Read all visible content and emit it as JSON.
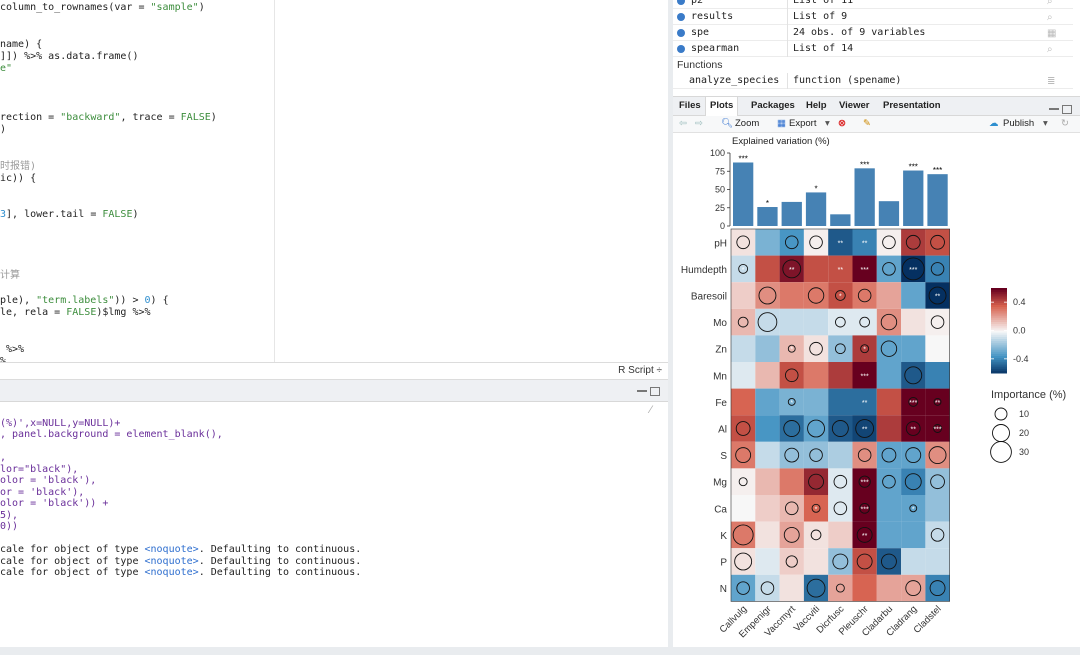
{
  "editor": {
    "lines": [
      [
        {
          "t": "column_to_rownames(var = ",
          "c": "c-fn"
        },
        {
          "t": "\"sample\"",
          "c": "c-str"
        },
        {
          "t": ")",
          "c": "c-fn"
        }
      ],
      [],
      [],
      [
        {
          "t": "name) {",
          "c": "c-fn"
        }
      ],
      [
        {
          "t": "]]) %>% as.data.frame()",
          "c": "c-fn"
        }
      ],
      [
        {
          "t": "e\"",
          "c": "c-str"
        }
      ],
      [],
      [],
      [],
      [
        {
          "t": "rection = ",
          "c": "c-fn"
        },
        {
          "t": "\"backward\"",
          "c": "c-str"
        },
        {
          "t": ", trace = ",
          "c": "c-fn"
        },
        {
          "t": "FALSE",
          "c": "c-str"
        },
        {
          "t": ")",
          "c": "c-fn"
        }
      ],
      [
        {
          "t": ")",
          "c": "c-fn"
        }
      ],
      [],
      [],
      [
        {
          "t": "时报错)",
          "c": "c-cmt"
        }
      ],
      [
        {
          "t": "ic)) {",
          "c": "c-fn"
        }
      ],
      [],
      [],
      [
        {
          "t": "3",
          "c": "c-num"
        },
        {
          "t": "], lower.tail = ",
          "c": "c-fn"
        },
        {
          "t": "FALSE",
          "c": "c-str"
        },
        {
          "t": ")",
          "c": "c-fn"
        }
      ],
      [],
      [],
      [],
      [],
      [
        {
          "t": "计算",
          "c": "c-cmt"
        }
      ],
      [],
      [
        {
          "t": "ple), ",
          "c": "c-fn"
        },
        {
          "t": "\"term.labels\"",
          "c": "c-str"
        },
        {
          "t": ")) > ",
          "c": "c-fn"
        },
        {
          "t": "0",
          "c": "c-num"
        },
        {
          "t": ") {",
          "c": "c-fn"
        }
      ],
      [
        {
          "t": "le, rela = ",
          "c": "c-fn"
        },
        {
          "t": "FALSE",
          "c": "c-str"
        },
        {
          "t": ")$lmg %>%",
          "c": "c-fn"
        }
      ],
      [],
      [],
      [
        {
          "t": " %>%",
          "c": "c-fn"
        }
      ],
      [
        {
          "t": "%",
          "c": "c-fn"
        }
      ]
    ],
    "script_type": "R Script ÷"
  },
  "console": {
    "lines": [
      [],
      [
        {
          "t": "(%)',x=NULL,y=NULL)+",
          "c": "c-purple"
        }
      ],
      [
        {
          "t": ", panel.background = element_blank(),",
          "c": "c-purple"
        }
      ],
      [],
      [
        {
          "t": ",",
          "c": "c-purple"
        }
      ],
      [
        {
          "t": "lor=\"black\"),",
          "c": "c-purple"
        }
      ],
      [
        {
          "t": "olor = 'black'),",
          "c": "c-purple"
        }
      ],
      [
        {
          "t": "or = 'black'),",
          "c": "c-purple"
        }
      ],
      [
        {
          "t": "olor = 'black')) +",
          "c": "c-purple"
        }
      ],
      [
        {
          "t": "5),",
          "c": "c-purple"
        }
      ],
      [
        {
          "t": "0))",
          "c": "c-purple"
        }
      ],
      [],
      [
        {
          "t": "cale for object of type ",
          "c": "c-fn"
        },
        {
          "t": "<noquote>",
          "c": "c-blue"
        },
        {
          "t": ". Defaulting to continuous.",
          "c": "c-fn"
        }
      ],
      [
        {
          "t": "cale for object of type ",
          "c": "c-fn"
        },
        {
          "t": "<noquote>",
          "c": "c-blue"
        },
        {
          "t": ". Defaulting to continuous.",
          "c": "c-fn"
        }
      ],
      [
        {
          "t": "cale for object of type ",
          "c": "c-fn"
        },
        {
          "t": "<noquote>",
          "c": "c-blue"
        },
        {
          "t": ". Defaulting to continuous.",
          "c": "c-fn"
        }
      ]
    ]
  },
  "environment": {
    "rows": [
      {
        "name": "p2",
        "value": "List of  11",
        "icon": "search-icon"
      },
      {
        "name": "results",
        "value": "List of  9",
        "icon": "search-icon"
      },
      {
        "name": "spe",
        "value": "24 obs. of 9 variables",
        "icon": "table-icon"
      },
      {
        "name": "spearman",
        "value": "List of  14",
        "icon": "search-icon"
      }
    ],
    "functions_label": "Functions",
    "functions": [
      {
        "name": "analyze_species",
        "value": "function (spename)",
        "icon": "code-icon"
      }
    ]
  },
  "files_tabs": [
    "Files",
    "Plots",
    "Packages",
    "Help",
    "Viewer",
    "Presentation"
  ],
  "plot_toolbar": {
    "zoom": "Zoom",
    "export": "Export",
    "publish": "Publish"
  },
  "colors": {
    "blue": "#3a7bc8",
    "bar": "#4682b4"
  },
  "chart_data": {
    "type": "heatmap",
    "bar_title": "Explained variation (%)",
    "bar_yticks": [
      "100",
      "75",
      "50",
      "25",
      "0"
    ],
    "bar_ylim": [
      0,
      100
    ],
    "species": [
      "Callvulg",
      "Empenigr",
      "Vaccmyrt",
      "Vaccviti",
      "Dicrfusc",
      "Pleuschr",
      "Cladarbu",
      "Cladrang",
      "Cladstel"
    ],
    "bar_values": [
      87,
      26,
      33,
      46,
      16,
      79,
      34,
      76,
      71
    ],
    "bar_signif": [
      "***",
      "*",
      "",
      "*",
      "",
      "***",
      "",
      "***",
      "***"
    ],
    "variables": [
      "pH",
      "Humdepth",
      "Baresoil",
      "Mo",
      "Zn",
      "Mn",
      "Fe",
      "Al",
      "S",
      "Mg",
      "Ca",
      "K",
      "P",
      "N"
    ],
    "matrix": [
      [
        0.05,
        -0.25,
        -0.35,
        0.02,
        -0.5,
        -0.4,
        0.02,
        0.45,
        0.4
      ],
      [
        -0.1,
        0.4,
        0.55,
        0.4,
        0.4,
        0.65,
        -0.3,
        -0.85,
        -0.4
      ],
      [
        0.1,
        0.25,
        0.3,
        0.3,
        0.4,
        0.3,
        0.2,
        -0.3,
        -0.6
      ],
      [
        0.15,
        -0.1,
        -0.1,
        -0.1,
        -0.05,
        -0.05,
        0.25,
        0.05,
        0.02
      ],
      [
        -0.1,
        -0.2,
        0.15,
        0.05,
        -0.2,
        0.45,
        -0.3,
        -0.3,
        0.0
      ],
      [
        -0.05,
        0.15,
        0.4,
        0.3,
        0.45,
        0.65,
        -0.3,
        -0.5,
        -0.4
      ],
      [
        0.35,
        -0.3,
        -0.25,
        -0.25,
        -0.45,
        -0.45,
        0.4,
        0.7,
        0.6
      ],
      [
        0.4,
        -0.35,
        -0.45,
        -0.3,
        -0.5,
        -0.55,
        0.45,
        0.65,
        0.6
      ],
      [
        0.3,
        -0.1,
        -0.2,
        -0.2,
        -0.15,
        0.25,
        -0.3,
        -0.3,
        0.25
      ],
      [
        0.02,
        0.15,
        0.3,
        0.5,
        -0.05,
        0.7,
        -0.3,
        -0.4,
        -0.2
      ],
      [
        0.0,
        0.1,
        0.15,
        0.35,
        -0.05,
        0.7,
        -0.3,
        -0.3,
        -0.2
      ],
      [
        0.3,
        0.05,
        0.2,
        0.05,
        0.1,
        0.65,
        -0.3,
        -0.3,
        -0.1
      ],
      [
        0.05,
        -0.05,
        0.1,
        0.05,
        -0.2,
        0.4,
        -0.5,
        -0.1,
        -0.1
      ],
      [
        -0.3,
        -0.1,
        0.05,
        -0.45,
        0.2,
        0.35,
        0.2,
        0.2,
        -0.4
      ]
    ],
    "importance": [
      [
        10,
        0,
        10,
        10,
        0,
        0,
        10,
        12,
        12
      ],
      [
        5,
        0,
        20,
        0,
        0,
        0,
        10,
        30,
        10
      ],
      [
        0,
        18,
        0,
        15,
        6,
        10,
        0,
        0,
        18
      ],
      [
        6,
        22,
        0,
        0,
        6,
        6,
        15,
        0,
        10
      ],
      [
        0,
        0,
        3,
        10,
        6,
        4,
        15,
        0,
        0
      ],
      [
        0,
        0,
        10,
        0,
        0,
        0,
        0,
        18,
        0
      ],
      [
        0,
        0,
        3,
        0,
        0,
        0,
        0,
        5,
        3
      ],
      [
        12,
        0,
        16,
        18,
        16,
        20,
        0,
        12,
        4
      ],
      [
        14,
        0,
        12,
        10,
        0,
        10,
        12,
        14,
        18
      ],
      [
        4,
        0,
        0,
        14,
        10,
        8,
        10,
        16,
        12
      ],
      [
        0,
        0,
        10,
        4,
        10,
        6,
        0,
        3,
        0
      ],
      [
        25,
        0,
        14,
        6,
        0,
        14,
        0,
        0,
        10
      ],
      [
        18,
        0,
        8,
        0,
        14,
        14,
        14,
        0,
        0
      ],
      [
        10,
        10,
        0,
        20,
        4,
        0,
        0,
        14,
        14
      ]
    ],
    "cell_signif": [
      [
        "",
        "",
        "",
        "",
        "**",
        "**",
        "",
        "",
        ""
      ],
      [
        "*",
        "",
        "**",
        "",
        "**",
        "***",
        "",
        "***",
        ""
      ],
      [
        "",
        "",
        "",
        "",
        "*",
        "",
        "",
        "",
        "**"
      ],
      [
        "",
        "",
        "",
        "",
        "",
        "",
        "",
        "",
        ""
      ],
      [
        "",
        "",
        "*",
        "",
        "",
        "*",
        "",
        "",
        ""
      ],
      [
        "",
        "",
        "",
        "",
        "",
        "***",
        "",
        "",
        ""
      ],
      [
        "",
        "",
        "*",
        "",
        "",
        "**",
        "",
        "***",
        "**"
      ],
      [
        "",
        "",
        "",
        "",
        "",
        "**",
        "",
        "**",
        "***"
      ],
      [
        "",
        "",
        "",
        "",
        "",
        "",
        "",
        "",
        ""
      ],
      [
        "",
        "",
        "",
        "",
        "",
        "***",
        "",
        "",
        ""
      ],
      [
        "",
        "",
        "",
        "*",
        "",
        "***",
        "",
        "*",
        ""
      ],
      [
        "",
        "",
        "",
        "",
        "",
        "**",
        "",
        "",
        ""
      ],
      [
        "",
        "",
        "",
        "",
        "",
        "",
        "",
        "",
        ""
      ],
      [
        "",
        "",
        "",
        "",
        "",
        "",
        "",
        "",
        ""
      ]
    ],
    "legend_colorbar": [
      "0.4",
      "0.0",
      "-0.4"
    ],
    "legend_title": "Importance (%)",
    "legend_sizes": [
      "10",
      "20",
      "30"
    ]
  }
}
